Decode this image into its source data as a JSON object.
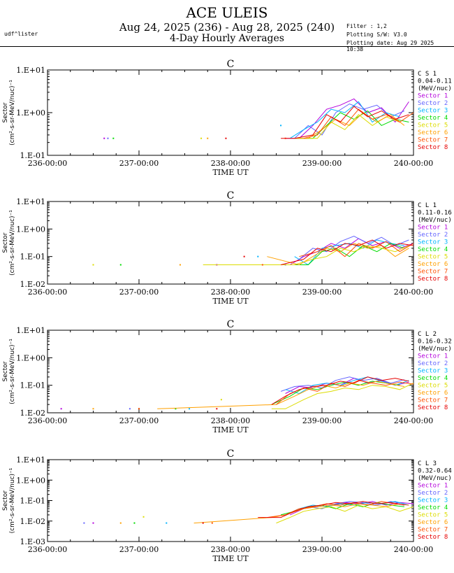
{
  "header": {
    "title": "ACE ULEIS",
    "subtitle": "Aug 24, 2025 (236) - Aug 28, 2025 (240)",
    "subtitle2": "4-Day Hourly Averages",
    "user": "udf^lister",
    "filter": "Filter : 1,2",
    "software": "Plotting S/W: V3.0",
    "plot_date": "Plotting date: Aug 29 2025 10:38"
  },
  "colors": {
    "Sector 1": "#b400dc",
    "Sector 2": "#6464ff",
    "Sector 3": "#00b4ff",
    "Sector 4": "#00dc00",
    "Sector 5": "#dcdc00",
    "Sector 6": "#ffa000",
    "Sector 7": "#ff5000",
    "Sector 8": "#e60000"
  },
  "chart_data": [
    {
      "type": "line",
      "panel_title": "C",
      "xlabel": "TIME UT",
      "ylabel_line1": "Sector",
      "ylabel_line2": "(cm²-s-sr-MeV/nuc)⁻¹",
      "yscale": "log",
      "ylim": [
        0.1,
        10
      ],
      "xlim": [
        236,
        240
      ],
      "yticks": [
        "1.E-01",
        "1.E+00",
        "1.E+01"
      ],
      "xticks": [
        "236-00:00",
        "237-00:00",
        "238-00:00",
        "239-00:00",
        "240-00:00"
      ],
      "legend_header": [
        "C S 1",
        "0.04-0.11",
        "(MeV/nuc)"
      ],
      "series": [
        {
          "name": "Sector 1",
          "x": [
            236.62,
            238.6,
            238.75,
            238.9,
            239.05,
            239.2,
            239.35,
            239.5,
            239.65,
            239.8,
            239.95
          ],
          "y": [
            0.25,
            0.25,
            0.25,
            0.5,
            1.2,
            1.5,
            2.1,
            1.0,
            1.3,
            0.6,
            1.8
          ]
        },
        {
          "name": "Sector 2",
          "x": [
            236.66,
            238.7,
            238.85,
            239.0,
            239.15,
            239.3,
            239.45,
            239.6,
            239.75,
            239.9
          ],
          "y": [
            0.25,
            0.25,
            0.5,
            0.3,
            1.0,
            1.6,
            1.2,
            1.5,
            0.8,
            1.1
          ]
        },
        {
          "name": "Sector 3",
          "x": [
            238.55,
            238.65,
            238.8,
            238.95,
            239.1,
            239.25,
            239.4,
            239.55,
            239.7,
            239.85
          ],
          "y": [
            0.5,
            0.25,
            0.4,
            0.6,
            1.2,
            1.0,
            1.8,
            0.6,
            1.0,
            0.8
          ]
        },
        {
          "name": "Sector 4",
          "x": [
            236.72,
            238.7,
            238.9,
            239.05,
            239.2,
            239.35,
            239.5,
            239.65,
            239.8,
            239.95
          ],
          "y": [
            0.25,
            0.25,
            0.25,
            0.5,
            1.0,
            0.7,
            1.1,
            0.5,
            0.7,
            0.6
          ]
        },
        {
          "name": "Sector 5",
          "x": [
            237.68,
            238.75,
            238.95,
            239.1,
            239.25,
            239.4,
            239.55,
            239.7,
            239.85
          ],
          "y": [
            0.25,
            0.25,
            0.25,
            0.6,
            0.4,
            0.9,
            0.5,
            0.8,
            0.6
          ]
        },
        {
          "name": "Sector 6",
          "x": [
            237.75,
            238.7,
            238.85,
            239.0,
            239.15,
            239.3,
            239.45,
            239.6,
            239.75,
            239.9
          ],
          "y": [
            0.25,
            0.25,
            0.25,
            0.4,
            0.7,
            0.5,
            1.0,
            0.6,
            0.9,
            0.5
          ]
        },
        {
          "name": "Sector 7",
          "x": [
            238.6,
            238.8,
            238.95,
            239.1,
            239.25,
            239.4,
            239.55,
            239.7,
            239.85,
            240.0
          ],
          "y": [
            0.25,
            0.25,
            0.3,
            0.8,
            0.5,
            1.2,
            0.7,
            0.9,
            0.6,
            1.0
          ]
        },
        {
          "name": "Sector 8",
          "x": [
            237.95,
            238.55,
            238.7,
            238.9,
            239.05,
            239.2,
            239.35,
            239.5,
            239.65,
            239.8,
            239.95
          ],
          "y": [
            0.25,
            0.25,
            0.25,
            0.3,
            0.9,
            0.6,
            1.4,
            0.8,
            1.1,
            0.7,
            0.9
          ]
        }
      ]
    },
    {
      "type": "line",
      "panel_title": "C",
      "xlabel": "TIME UT",
      "ylabel_line1": "Sector",
      "ylabel_line2": "(cm²-s-sr-MeV/nuc)⁻¹",
      "yscale": "log",
      "ylim": [
        0.01,
        10
      ],
      "xlim": [
        236,
        240
      ],
      "yticks": [
        "1.E-02",
        "1.E-01",
        "1.E+00",
        "1.E+01"
      ],
      "xticks": [
        "236-00:00",
        "237-00:00",
        "238-00:00",
        "239-00:00",
        "240-00:00"
      ],
      "legend_header": [
        "C L 1",
        "0.11-0.16",
        "(MeV/nuc)"
      ],
      "series": [
        {
          "name": "Sector 1",
          "x": [
            237.85,
            238.65,
            238.8,
            238.95,
            239.1,
            239.25,
            239.4,
            239.55,
            239.7,
            239.85,
            240.0
          ],
          "y": [
            0.05,
            0.05,
            0.1,
            0.15,
            0.3,
            0.2,
            0.45,
            0.25,
            0.35,
            0.2,
            0.3
          ]
        },
        {
          "name": "Sector 2",
          "x": [
            238.6,
            238.75,
            238.9,
            239.05,
            239.2,
            239.35,
            239.5,
            239.65,
            239.8,
            239.95
          ],
          "y": [
            0.05,
            0.08,
            0.2,
            0.15,
            0.35,
            0.55,
            0.3,
            0.5,
            0.25,
            0.4
          ]
        },
        {
          "name": "Sector 3",
          "x": [
            238.3,
            238.7,
            238.85,
            239.0,
            239.15,
            239.3,
            239.45,
            239.6,
            239.75,
            239.9
          ],
          "y": [
            0.1,
            0.1,
            0.05,
            0.2,
            0.25,
            0.3,
            0.2,
            0.4,
            0.3,
            0.25
          ]
        },
        {
          "name": "Sector 4",
          "x": [
            236.8,
            238.05,
            238.65,
            238.85,
            239.0,
            239.15,
            239.3,
            239.45,
            239.6,
            239.75,
            239.9
          ],
          "y": [
            0.05,
            0.05,
            0.05,
            0.05,
            0.15,
            0.2,
            0.1,
            0.25,
            0.15,
            0.3,
            0.2
          ]
        },
        {
          "name": "Sector 5",
          "x": [
            236.5,
            237.7,
            238.7,
            238.9,
            239.05,
            239.2,
            239.35,
            239.5,
            239.65,
            239.8,
            239.95
          ],
          "y": [
            0.05,
            0.05,
            0.05,
            0.08,
            0.1,
            0.2,
            0.15,
            0.25,
            0.2,
            0.15,
            0.25
          ]
        },
        {
          "name": "Sector 6",
          "x": [
            237.45,
            238.4,
            238.75,
            238.9,
            239.05,
            239.2,
            239.35,
            239.5,
            239.65,
            239.8,
            239.95
          ],
          "y": [
            0.05,
            0.1,
            0.05,
            0.1,
            0.2,
            0.15,
            0.3,
            0.2,
            0.25,
            0.1,
            0.2
          ]
        },
        {
          "name": "Sector 7",
          "x": [
            238.35,
            238.75,
            238.95,
            239.1,
            239.25,
            239.4,
            239.55,
            239.7,
            239.85,
            240.0
          ],
          "y": [
            0.05,
            0.1,
            0.15,
            0.25,
            0.1,
            0.3,
            0.2,
            0.35,
            0.15,
            0.3
          ]
        },
        {
          "name": "Sector 8",
          "x": [
            238.15,
            238.55,
            238.8,
            238.95,
            239.1,
            239.25,
            239.4,
            239.55,
            239.7,
            239.85,
            240.0
          ],
          "y": [
            0.1,
            0.05,
            0.08,
            0.2,
            0.15,
            0.3,
            0.25,
            0.4,
            0.2,
            0.3,
            0.25
          ]
        }
      ]
    },
    {
      "type": "line",
      "panel_title": "C",
      "xlabel": "TIME UT",
      "ylabel_line1": "Sector",
      "ylabel_line2": "(cm²-s-sr-MeV/nuc)⁻¹",
      "yscale": "log",
      "ylim": [
        0.01,
        10
      ],
      "xlim": [
        236,
        240
      ],
      "yticks": [
        "1.E-02",
        "1.E-01",
        "1.E+00",
        "1.E+01"
      ],
      "xticks": [
        "236-00:00",
        "237-00:00",
        "238-00:00",
        "239-00:00",
        "240-00:00"
      ],
      "legend_header": [
        "C L 2",
        "0.16-0.32",
        "(MeV/nuc)"
      ],
      "series": [
        {
          "name": "Sector 1",
          "x": [
            236.15,
            238.6,
            238.75,
            238.9,
            239.05,
            239.2,
            239.35,
            239.5,
            239.65,
            239.8,
            239.95
          ],
          "y": [
            0.014,
            0.05,
            0.09,
            0.08,
            0.12,
            0.1,
            0.18,
            0.12,
            0.15,
            0.1,
            0.13
          ]
        },
        {
          "name": "Sector 2",
          "x": [
            236.9,
            238.55,
            238.7,
            238.85,
            239.0,
            239.15,
            239.3,
            239.45,
            239.6,
            239.75,
            239.9
          ],
          "y": [
            0.014,
            0.06,
            0.09,
            0.1,
            0.08,
            0.15,
            0.2,
            0.15,
            0.18,
            0.12,
            0.16
          ]
        },
        {
          "name": "Sector 3",
          "x": [
            237.55,
            238.6,
            238.75,
            238.9,
            239.05,
            239.2,
            239.35,
            239.5,
            239.65,
            239.8,
            239.95
          ],
          "y": [
            0.014,
            0.07,
            0.05,
            0.1,
            0.12,
            0.1,
            0.15,
            0.2,
            0.14,
            0.1,
            0.15
          ]
        },
        {
          "name": "Sector 4",
          "x": [
            237.4,
            238.45,
            238.65,
            238.8,
            238.95,
            239.1,
            239.25,
            239.4,
            239.55,
            239.7,
            239.85
          ],
          "y": [
            0.014,
            0.02,
            0.04,
            0.08,
            0.07,
            0.1,
            0.13,
            0.1,
            0.14,
            0.12,
            0.1
          ]
        },
        {
          "name": "Sector 5",
          "x": [
            237.9,
            238.45,
            238.6,
            238.8,
            238.95,
            239.1,
            239.25,
            239.4,
            239.55,
            239.7,
            239.85,
            240.0
          ],
          "y": [
            0.03,
            0.014,
            0.014,
            0.03,
            0.05,
            0.06,
            0.08,
            0.07,
            0.1,
            0.09,
            0.07,
            0.12
          ]
        },
        {
          "name": "Sector 6",
          "x": [
            236.5,
            237.2,
            238.5,
            238.7,
            238.85,
            239.0,
            239.15,
            239.3,
            239.45,
            239.6,
            239.75,
            239.9
          ],
          "y": [
            0.014,
            0.014,
            0.02,
            0.04,
            0.07,
            0.1,
            0.08,
            0.12,
            0.1,
            0.14,
            0.11,
            0.09
          ]
        },
        {
          "name": "Sector 7",
          "x": [
            237.0,
            238.5,
            238.65,
            238.8,
            238.95,
            239.1,
            239.25,
            239.4,
            239.55,
            239.7,
            239.85,
            240.0
          ],
          "y": [
            0.014,
            0.02,
            0.05,
            0.08,
            0.06,
            0.12,
            0.09,
            0.15,
            0.12,
            0.1,
            0.13,
            0.11
          ]
        },
        {
          "name": "Sector 8",
          "x": [
            237.85,
            238.45,
            238.6,
            238.75,
            238.9,
            239.05,
            239.2,
            239.35,
            239.5,
            239.65,
            239.8,
            239.95
          ],
          "y": [
            0.014,
            0.02,
            0.04,
            0.07,
            0.09,
            0.1,
            0.14,
            0.12,
            0.2,
            0.15,
            0.18,
            0.14
          ]
        }
      ]
    },
    {
      "type": "line",
      "panel_title": "C",
      "xlabel": "TIME UT",
      "ylabel_line1": "Sector",
      "ylabel_line2": "(cm²-s-sr-MeV/nuc)⁻¹",
      "yscale": "log",
      "ylim": [
        0.001,
        10
      ],
      "xlim": [
        236,
        240
      ],
      "yticks": [
        "1.E-03",
        "1.E-02",
        "1.E-01",
        "1.E+00",
        "1.E+01"
      ],
      "xticks": [
        "236-00:00",
        "237-00:00",
        "238-00:00",
        "239-00:00",
        "240-00:00"
      ],
      "legend_header": [
        "C L 3",
        "0.32-0.64",
        "(MeV/nuc)"
      ],
      "series": [
        {
          "name": "Sector 1",
          "x": [
            236.5,
            238.65,
            238.8,
            238.95,
            239.1,
            239.25,
            239.4,
            239.55,
            239.7,
            239.85,
            240.0
          ],
          "y": [
            0.008,
            0.02,
            0.04,
            0.05,
            0.06,
            0.08,
            0.07,
            0.09,
            0.06,
            0.08,
            0.07
          ]
        },
        {
          "name": "Sector 2",
          "x": [
            236.4,
            238.7,
            238.85,
            239.0,
            239.15,
            239.3,
            239.45,
            239.6,
            239.75,
            239.9
          ],
          "y": [
            0.008,
            0.03,
            0.05,
            0.04,
            0.07,
            0.09,
            0.08,
            0.06,
            0.09,
            0.07
          ]
        },
        {
          "name": "Sector 3",
          "x": [
            237.3,
            238.6,
            238.75,
            238.9,
            239.05,
            239.2,
            239.35,
            239.5,
            239.65,
            239.8,
            239.95
          ],
          "y": [
            0.008,
            0.02,
            0.04,
            0.06,
            0.05,
            0.07,
            0.06,
            0.08,
            0.07,
            0.09,
            0.06
          ]
        },
        {
          "name": "Sector 4",
          "x": [
            236.95,
            238.55,
            238.7,
            238.85,
            239.0,
            239.15,
            239.3,
            239.45,
            239.6,
            239.75,
            239.9
          ],
          "y": [
            0.008,
            0.02,
            0.03,
            0.05,
            0.06,
            0.04,
            0.07,
            0.05,
            0.08,
            0.06,
            0.05
          ]
        },
        {
          "name": "Sector 5",
          "x": [
            237.05,
            238.5,
            238.65,
            238.8,
            238.95,
            239.1,
            239.25,
            239.4,
            239.55,
            239.7,
            239.85,
            240.0
          ],
          "y": [
            0.016,
            0.008,
            0.015,
            0.03,
            0.04,
            0.05,
            0.03,
            0.06,
            0.04,
            0.05,
            0.03,
            0.05
          ]
        },
        {
          "name": "Sector 6",
          "x": [
            236.8,
            237.6,
            238.45,
            238.6,
            238.8,
            238.95,
            239.1,
            239.25,
            239.4,
            239.55,
            239.7,
            239.85
          ],
          "y": [
            0.008,
            0.008,
            0.015,
            0.02,
            0.04,
            0.05,
            0.06,
            0.05,
            0.07,
            0.06,
            0.05,
            0.07
          ]
        },
        {
          "name": "Sector 7",
          "x": [
            237.8,
            238.4,
            238.6,
            238.75,
            238.9,
            239.05,
            239.2,
            239.35,
            239.5,
            239.65,
            239.8,
            239.95
          ],
          "y": [
            0.008,
            0.015,
            0.02,
            0.04,
            0.05,
            0.07,
            0.06,
            0.08,
            0.06,
            0.09,
            0.07,
            0.06
          ]
        },
        {
          "name": "Sector 8",
          "x": [
            237.7,
            238.3,
            238.55,
            238.7,
            238.85,
            239.0,
            239.15,
            239.3,
            239.45,
            239.6,
            239.75,
            239.9
          ],
          "y": [
            0.008,
            0.015,
            0.015,
            0.03,
            0.05,
            0.06,
            0.08,
            0.07,
            0.09,
            0.07,
            0.08,
            0.06
          ]
        }
      ]
    }
  ]
}
